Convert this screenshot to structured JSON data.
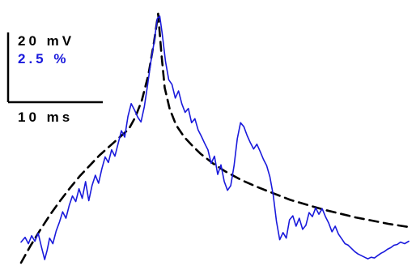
{
  "chart_data": {
    "type": "line",
    "title": "",
    "xlabel": "",
    "ylabel": "",
    "grid": false,
    "legend": "none",
    "scale_bar": {
      "vertical_label_1": "20 mV",
      "vertical_label_2": "2.5 %",
      "horizontal_label": "10 ms",
      "color_label_1": "#000000",
      "color_label_2": "#1a1adc"
    },
    "xlim": [
      0,
      48
    ],
    "ylim": [
      0,
      32
    ],
    "series": [
      {
        "style": "solid",
        "color": "#1a1adc",
        "points": [
          [
            0.0,
            2.8
          ],
          [
            0.5,
            3.4
          ],
          [
            0.9,
            2.6
          ],
          [
            1.3,
            3.6
          ],
          [
            1.7,
            2.9
          ],
          [
            2.1,
            3.9
          ],
          [
            2.5,
            2.2
          ],
          [
            2.9,
            0.6
          ],
          [
            3.2,
            1.8
          ],
          [
            3.5,
            3.3
          ],
          [
            3.9,
            2.6
          ],
          [
            4.3,
            4.2
          ],
          [
            4.7,
            5.3
          ],
          [
            5.1,
            6.6
          ],
          [
            5.5,
            5.8
          ],
          [
            5.9,
            7.4
          ],
          [
            6.3,
            8.6
          ],
          [
            6.7,
            7.9
          ],
          [
            7.1,
            9.5
          ],
          [
            7.5,
            8.3
          ],
          [
            7.9,
            10.4
          ],
          [
            8.3,
            8.0
          ],
          [
            8.7,
            9.9
          ],
          [
            9.1,
            11.2
          ],
          [
            9.5,
            10.2
          ],
          [
            9.9,
            12.0
          ],
          [
            10.3,
            13.5
          ],
          [
            10.7,
            12.8
          ],
          [
            11.1,
            14.4
          ],
          [
            11.5,
            13.6
          ],
          [
            11.9,
            15.2
          ],
          [
            12.3,
            16.8
          ],
          [
            12.7,
            16.0
          ],
          [
            13.1,
            18.6
          ],
          [
            13.5,
            20.2
          ],
          [
            13.9,
            19.4
          ],
          [
            14.3,
            18.5
          ],
          [
            14.7,
            17.9
          ],
          [
            15.1,
            19.8
          ],
          [
            15.5,
            22.5
          ],
          [
            15.9,
            25.4
          ],
          [
            16.3,
            27.9
          ],
          [
            16.7,
            30.9
          ],
          [
            17.0,
            31.2
          ],
          [
            17.3,
            29.0
          ],
          [
            17.7,
            25.5
          ],
          [
            18.1,
            23.2
          ],
          [
            18.5,
            22.6
          ],
          [
            18.9,
            20.9
          ],
          [
            19.3,
            21.8
          ],
          [
            19.7,
            20.2
          ],
          [
            20.1,
            19.1
          ],
          [
            20.5,
            19.6
          ],
          [
            20.9,
            17.8
          ],
          [
            21.3,
            18.3
          ],
          [
            21.7,
            16.9
          ],
          [
            22.1,
            16.1
          ],
          [
            22.5,
            15.2
          ],
          [
            22.9,
            14.4
          ],
          [
            23.3,
            12.7
          ],
          [
            23.7,
            13.6
          ],
          [
            24.1,
            11.3
          ],
          [
            24.5,
            12.5
          ],
          [
            24.9,
            10.4
          ],
          [
            25.3,
            9.3
          ],
          [
            25.7,
            9.9
          ],
          [
            26.1,
            12.4
          ],
          [
            26.5,
            15.8
          ],
          [
            26.9,
            17.8
          ],
          [
            27.3,
            17.3
          ],
          [
            27.7,
            16.2
          ],
          [
            28.1,
            15.3
          ],
          [
            28.5,
            14.5
          ],
          [
            28.9,
            15.1
          ],
          [
            29.3,
            14.2
          ],
          [
            29.7,
            13.2
          ],
          [
            30.1,
            12.4
          ],
          [
            30.5,
            11.0
          ],
          [
            30.9,
            8.7
          ],
          [
            31.3,
            5.4
          ],
          [
            31.7,
            3.1
          ],
          [
            32.1,
            4.0
          ],
          [
            32.5,
            3.3
          ],
          [
            32.9,
            5.6
          ],
          [
            33.3,
            6.1
          ],
          [
            33.7,
            4.8
          ],
          [
            34.1,
            5.8
          ],
          [
            34.5,
            4.4
          ],
          [
            34.9,
            4.9
          ],
          [
            35.3,
            6.5
          ],
          [
            35.7,
            6.0
          ],
          [
            36.1,
            7.1
          ],
          [
            36.5,
            6.3
          ],
          [
            36.9,
            7.0
          ],
          [
            37.3,
            6.0
          ],
          [
            37.7,
            5.2
          ],
          [
            38.1,
            4.1
          ],
          [
            38.5,
            4.8
          ],
          [
            38.9,
            3.8
          ],
          [
            39.3,
            3.2
          ],
          [
            39.7,
            2.6
          ],
          [
            40.1,
            2.4
          ],
          [
            40.5,
            2.0
          ],
          [
            40.9,
            1.6
          ],
          [
            41.3,
            1.3
          ],
          [
            41.7,
            1.1
          ],
          [
            42.1,
            0.9
          ],
          [
            42.5,
            0.7
          ],
          [
            42.9,
            0.9
          ],
          [
            43.3,
            0.8
          ],
          [
            43.7,
            1.1
          ],
          [
            44.1,
            1.4
          ],
          [
            44.5,
            1.6
          ],
          [
            44.9,
            1.9
          ],
          [
            45.3,
            2.1
          ],
          [
            45.7,
            2.4
          ],
          [
            46.1,
            2.5
          ],
          [
            46.5,
            2.8
          ],
          [
            47.0,
            2.6
          ],
          [
            47.5,
            2.9
          ]
        ]
      },
      {
        "style": "dashed",
        "color": "#000000",
        "points": [
          [
            0.0,
            0.2
          ],
          [
            1.2,
            2.4
          ],
          [
            2.4,
            4.4
          ],
          [
            3.6,
            6.3
          ],
          [
            4.8,
            8.0
          ],
          [
            6.0,
            9.6
          ],
          [
            7.2,
            11.1
          ],
          [
            8.4,
            12.4
          ],
          [
            9.6,
            13.7
          ],
          [
            10.8,
            14.8
          ],
          [
            12.0,
            15.9
          ],
          [
            13.2,
            17.0
          ],
          [
            14.0,
            18.5
          ],
          [
            14.8,
            20.6
          ],
          [
            15.6,
            23.8
          ],
          [
            16.3,
            28.0
          ],
          [
            16.8,
            31.5
          ],
          [
            17.2,
            26.5
          ],
          [
            17.6,
            22.2
          ],
          [
            18.2,
            19.6
          ],
          [
            19.0,
            17.5
          ],
          [
            20.0,
            16.0
          ],
          [
            21.0,
            14.9
          ],
          [
            22.0,
            13.9
          ],
          [
            23.5,
            12.7
          ],
          [
            25.0,
            11.7
          ],
          [
            27.0,
            10.6
          ],
          [
            29.0,
            9.7
          ],
          [
            31.0,
            8.9
          ],
          [
            33.0,
            8.1
          ],
          [
            35.0,
            7.5
          ],
          [
            37.0,
            6.9
          ],
          [
            39.0,
            6.4
          ],
          [
            41.0,
            5.9
          ],
          [
            43.0,
            5.5
          ],
          [
            45.0,
            5.1
          ],
          [
            47.5,
            4.7
          ]
        ]
      }
    ]
  }
}
